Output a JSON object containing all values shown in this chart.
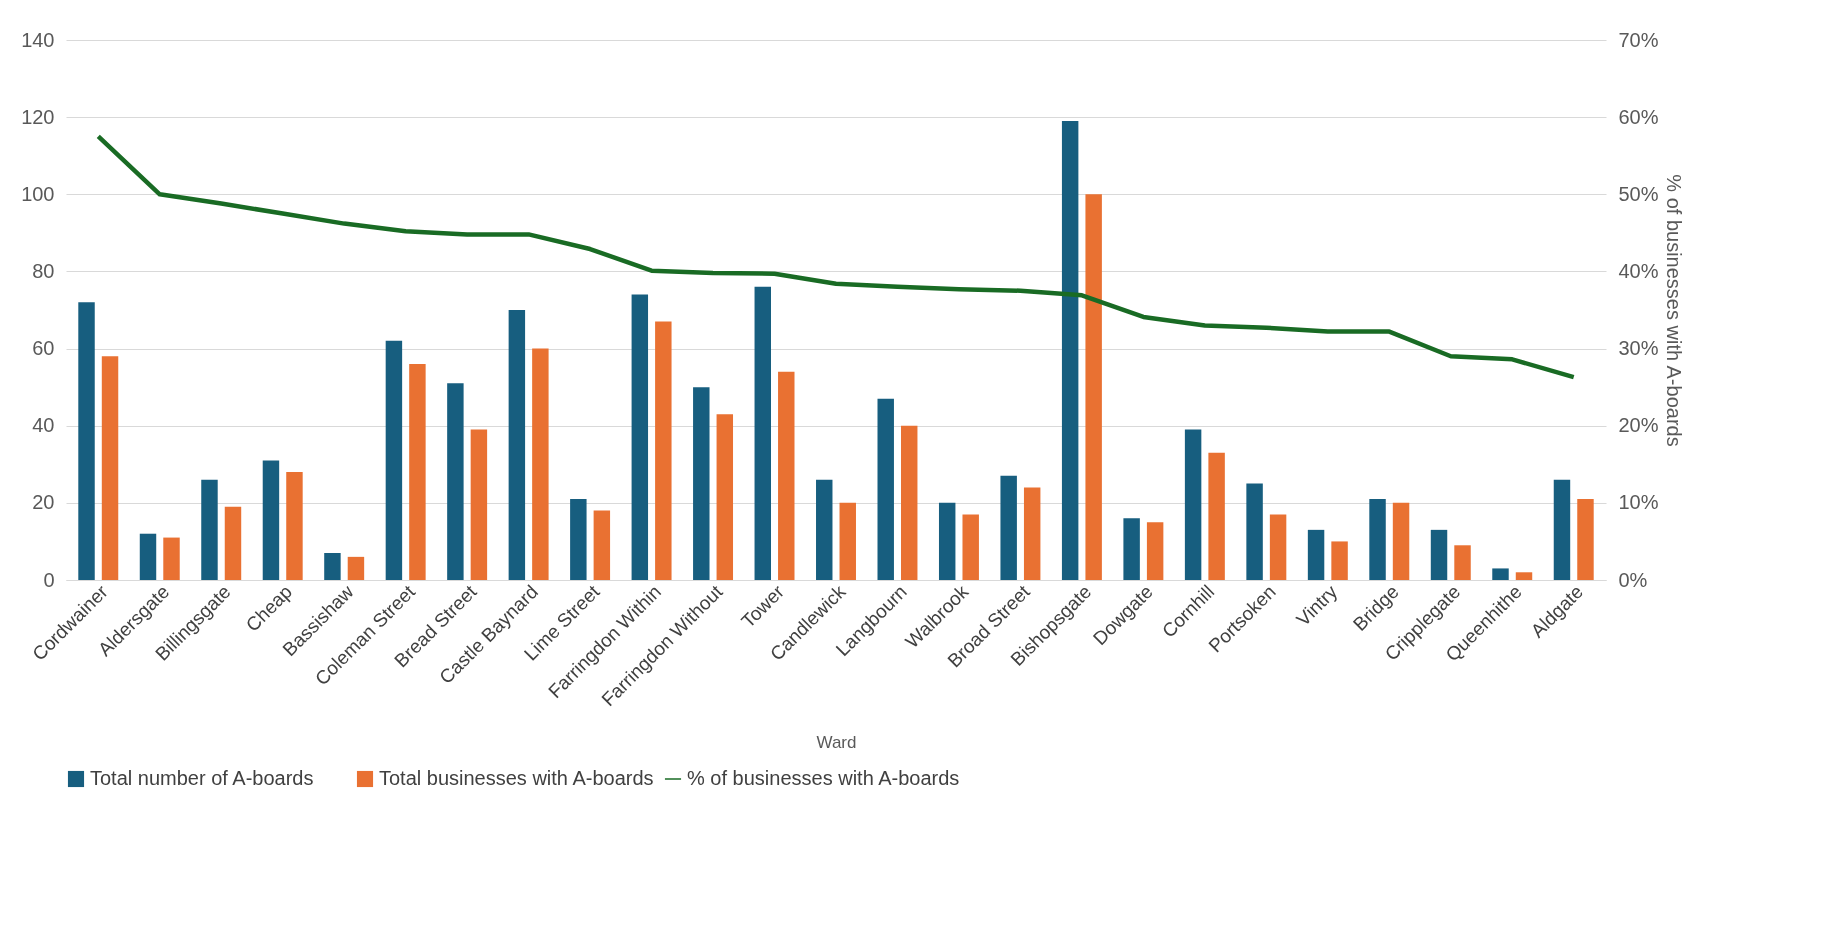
{
  "chart_data": {
    "type": "bar",
    "xlabel": "Ward",
    "y2label": "% of businesses with A-boards",
    "categories": [
      "Cordwainer",
      "Aldersgate",
      "Billingsgate",
      "Cheap",
      "Bassishaw",
      "Coleman Street",
      "Bread Street",
      "Castle Baynard",
      "Lime Street",
      "Farringdon Within",
      "Farringdon Without",
      "Tower",
      "Candlewick",
      "Langbourn",
      "Walbrook",
      "Broad Street",
      "Bishopsgate",
      "Dowgate",
      "Cornhill",
      "Portsoken",
      "Vintry",
      "Bridge",
      "Cripplegate",
      "Queenhithe",
      "Aldgate"
    ],
    "series": [
      {
        "name": "Total number of A-boards",
        "color": "#175e7f",
        "values": [
          72,
          12,
          26,
          31,
          7,
          62,
          51,
          70,
          21,
          74,
          50,
          76,
          26,
          47,
          20,
          27,
          119,
          16,
          39,
          25,
          13,
          21,
          13,
          3,
          26
        ]
      },
      {
        "name": "Total businesses with A-boards",
        "color": "#e97132",
        "values": [
          58,
          11,
          19,
          28,
          6,
          56,
          39,
          60,
          18,
          67,
          43,
          54,
          20,
          40,
          17,
          24,
          100,
          15,
          33,
          17,
          10,
          20,
          9,
          2,
          21
        ]
      },
      {
        "name": "% of businesses with A-boards",
        "color": "#196b24",
        "type": "line",
        "axis": "y2",
        "values": [
          57.5,
          50,
          48.8,
          47.5,
          46.2,
          45.2,
          44.8,
          44.8,
          42.9,
          40.1,
          39.8,
          39.7,
          38.4,
          38.0,
          37.7,
          37.5,
          36.9,
          34.1,
          33.0,
          32.7,
          32.2,
          32.2,
          29.0,
          28.6,
          26.3
        ]
      }
    ],
    "ylim": [
      0,
      140
    ],
    "yticks": [
      0,
      20,
      40,
      60,
      80,
      100,
      120,
      140
    ],
    "y2lim": [
      0,
      70
    ],
    "y2ticks": [
      {
        "value": 0,
        "label": "0%"
      },
      {
        "value": 10,
        "label": "10%"
      },
      {
        "value": 20,
        "label": "20%"
      },
      {
        "value": 30,
        "label": "30%"
      },
      {
        "value": 40,
        "label": "40%"
      },
      {
        "value": 50,
        "label": "50%"
      },
      {
        "value": 60,
        "label": "60%"
      },
      {
        "value": 70,
        "label": "70%"
      }
    ],
    "grid": "y",
    "legend": "bottom"
  }
}
